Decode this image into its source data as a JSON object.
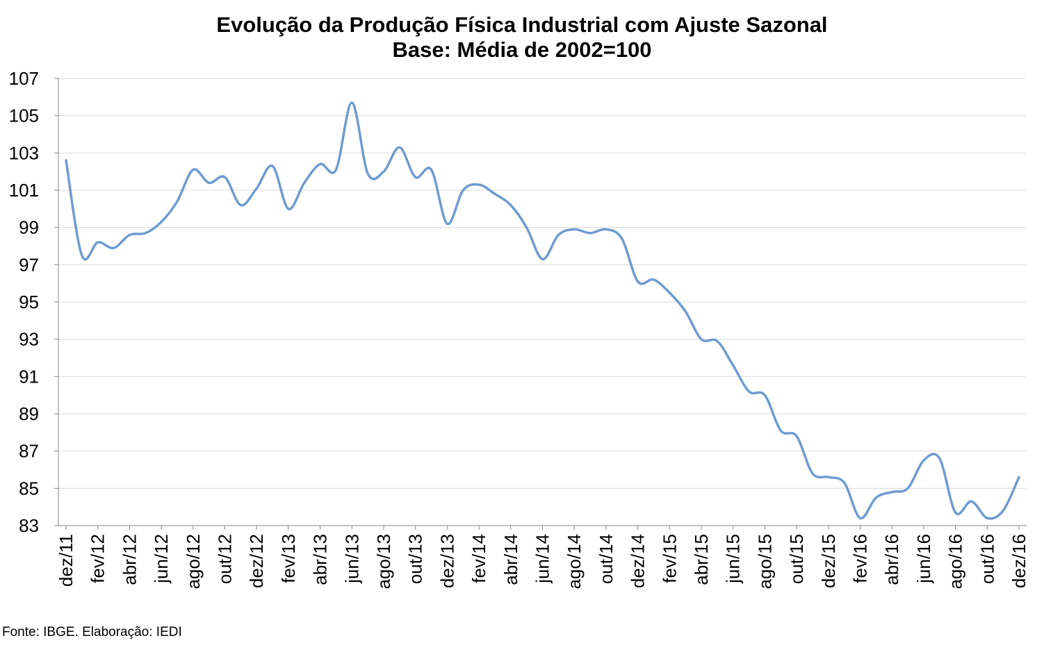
{
  "chart_data": {
    "type": "line",
    "title": "Evolução da Produção Física Industrial com Ajuste Sazonal",
    "subtitle": "Base: Média de 2002=100",
    "xlabel": "",
    "ylabel": "",
    "ylim": [
      83,
      107
    ],
    "yticks": [
      "107",
      "105",
      "103",
      "101",
      "99",
      "97",
      "95",
      "93",
      "91",
      "89",
      "87",
      "85",
      "83"
    ],
    "grid": true,
    "legend": "none",
    "line_color": "#6f9bd1",
    "x": [
      "dez/11",
      "jan/12",
      "fev/12",
      "mar/12",
      "abr/12",
      "mai/12",
      "jun/12",
      "jul/12",
      "ago/12",
      "set/12",
      "out/12",
      "nov/12",
      "dez/12",
      "jan/13",
      "fev/13",
      "mar/13",
      "abr/13",
      "mai/13",
      "jun/13",
      "jul/13",
      "ago/13",
      "set/13",
      "out/13",
      "nov/13",
      "dez/13",
      "jan/14",
      "fev/14",
      "mar/14",
      "abr/14",
      "mai/14",
      "jun/14",
      "jul/14",
      "ago/14",
      "set/14",
      "out/14",
      "nov/14",
      "dez/14",
      "jan/15",
      "fev/15",
      "mar/15",
      "abr/15",
      "mai/15",
      "jun/15",
      "jul/15",
      "ago/15",
      "set/15",
      "out/15",
      "nov/15",
      "dez/15",
      "jan/16",
      "fev/16",
      "mar/16",
      "abr/16",
      "mai/16",
      "jun/16",
      "jul/16",
      "ago/16",
      "set/16",
      "out/16",
      "nov/16",
      "dez/16"
    ],
    "xtick_labels": [
      "dez/11",
      "fev/12",
      "abr/12",
      "jun/12",
      "ago/12",
      "out/12",
      "dez/12",
      "fev/13",
      "abr/13",
      "jun/13",
      "ago/13",
      "out/13",
      "dez/13",
      "fev/14",
      "abr/14",
      "jun/14",
      "ago/14",
      "out/14",
      "dez/14",
      "fev/15",
      "abr/15",
      "jun/15",
      "ago/15",
      "out/15",
      "dez/15",
      "fev/16",
      "abr/16",
      "jun/16",
      "ago/16",
      "out/16",
      "dez/16"
    ],
    "series": [
      {
        "name": "",
        "values": [
          102.6,
          97.5,
          98.2,
          97.9,
          98.6,
          98.7,
          99.3,
          100.4,
          102.1,
          101.4,
          101.7,
          100.2,
          101.1,
          102.3,
          100.0,
          101.4,
          102.4,
          102.1,
          105.7,
          101.9,
          102.0,
          103.3,
          101.7,
          102.1,
          99.2,
          101.0,
          101.3,
          100.8,
          100.2,
          99.0,
          97.3,
          98.6,
          98.9,
          98.7,
          98.9,
          98.4,
          96.1,
          96.2,
          95.5,
          94.5,
          93.0,
          92.9,
          91.6,
          90.2,
          90.0,
          88.1,
          87.8,
          85.8,
          85.6,
          85.3,
          83.4,
          84.5,
          84.8,
          85.0,
          86.5,
          86.6,
          83.7,
          84.3,
          83.4,
          83.8,
          85.6
        ]
      }
    ]
  },
  "source_note": "Fonte: IBGE. Elaboração: IEDI"
}
